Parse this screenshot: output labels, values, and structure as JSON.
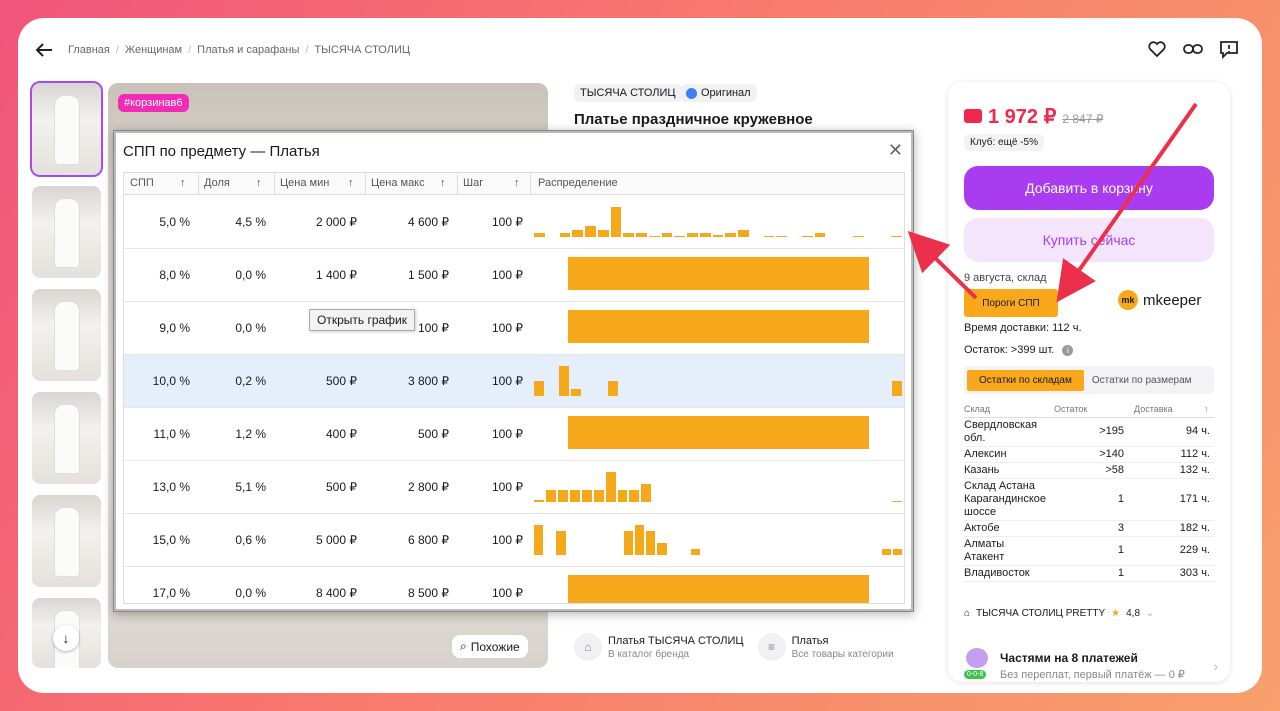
{
  "breadcrumb": [
    "Главная",
    "Женщинам",
    "Платья и сарафаны",
    "ТЫСЯЧА СТОЛИЦ"
  ],
  "breadcrumb_sep": "/",
  "image": {
    "tag": "#корзинав6",
    "similar_label": "Похожие"
  },
  "product": {
    "brand": "ТЫСЯЧА СТОЛИЦ",
    "original_label": "Оригинал",
    "title": "Платье праздничное кружевное"
  },
  "bottom_links": [
    {
      "title": "Платья ТЫСЯЧА СТОЛИЦ",
      "subtitle": "В каталог бренда"
    },
    {
      "title": "Платья",
      "subtitle": "Все товары категории"
    }
  ],
  "buy_panel": {
    "price": "1 972 ₽",
    "old_price": "2 847 ₽",
    "club": "Клуб: ещё -5%",
    "add_to_cart": "Добавить в корзину",
    "buy_now": "Купить сейчас",
    "delivery_date": "9 августа, склад",
    "spp_button": "Пороги СПП",
    "mkeeper_logo": "mk",
    "mkeeper": "mkeeper",
    "delivery_time": "Время доставки: 112 ч.",
    "stock": "Остаток: >399 шт.",
    "tab_warehouses": "Остатки по складам",
    "tab_sizes": "Остатки по размерам",
    "warehouse_headers": [
      "Склад",
      "Остаток",
      "Доставка"
    ],
    "warehouses": [
      {
        "name": "Свердловская обл.",
        "qty": ">195",
        "time": "94 ч."
      },
      {
        "name": "Алексин",
        "qty": ">140",
        "time": "112 ч."
      },
      {
        "name": "Казань",
        "qty": ">58",
        "time": "132 ч."
      },
      {
        "name": "Склад Астана Карагандинское шоссе",
        "qty": "1",
        "time": "171 ч."
      },
      {
        "name": "Актобе",
        "qty": "3",
        "time": "182 ч."
      },
      {
        "name": "Алматы Атакент",
        "qty": "1",
        "time": "229 ч."
      },
      {
        "name": "Владивосток",
        "qty": "1",
        "time": "303 ч."
      }
    ],
    "seller": "ТЫСЯЧА СТОЛИЦ PRETTY",
    "rating": "4,8",
    "installments_title": "Частями на 8 платежей",
    "installments_sub": "Без переплат, первый платёж — 0 ₽",
    "installments_badge": "0-0-8"
  },
  "modal": {
    "title": "СПП по предмету — Платья",
    "columns": [
      "СПП",
      "Доля",
      "Цена мин",
      "Цена макс",
      "Шаг",
      "Распределение"
    ],
    "tooltip": "Открыть график",
    "rows": [
      {
        "spp": "5,0 %",
        "share": "4,5 %",
        "min": "2 000 ₽",
        "max": "4 600 ₽",
        "step": "100 ₽",
        "bars": [
          1,
          0,
          1,
          2,
          3,
          2,
          8,
          1,
          1,
          0.3,
          1,
          0.3,
          1,
          1,
          0.5,
          1,
          2,
          0,
          0.3,
          0.3,
          0,
          0.3,
          1,
          0,
          0,
          0.3,
          0,
          0,
          0.3
        ]
      },
      {
        "spp": "8,0 %",
        "share": "0,0 %",
        "min": "1 400 ₽",
        "max": "1 500 ₽",
        "step": "100 ₽",
        "full": true
      },
      {
        "spp": "9,0 %",
        "share": "0,0 %",
        "min": "",
        "max": "100 ₽",
        "step": "100 ₽",
        "full": true
      },
      {
        "spp": "10,0 %",
        "share": "0,2 %",
        "min": "500 ₽",
        "max": "3 800 ₽",
        "step": "100 ₽",
        "highlight": true,
        "bars": [
          2,
          0,
          4,
          1,
          0,
          0,
          2,
          0,
          0,
          0,
          0,
          0,
          0,
          0,
          0,
          0,
          0,
          0,
          0,
          0,
          0,
          0,
          0,
          0,
          0,
          0,
          0,
          0,
          0,
          2
        ]
      },
      {
        "spp": "11,0 %",
        "share": "1,2 %",
        "min": "400 ₽",
        "max": "500 ₽",
        "step": "100 ₽",
        "full": true
      },
      {
        "spp": "13,0 %",
        "share": "5,1 %",
        "min": "500 ₽",
        "max": "2 800 ₽",
        "step": "100 ₽",
        "bars": [
          0.3,
          2,
          2,
          2,
          2,
          2,
          5,
          2,
          2,
          3,
          0,
          0,
          0,
          0,
          0,
          0,
          0,
          0,
          0,
          0,
          0,
          0,
          0,
          0,
          0,
          0,
          0,
          0,
          0,
          0,
          0.1
        ]
      },
      {
        "spp": "15,0 %",
        "share": "0,6 %",
        "min": "5 000 ₽",
        "max": "6 800 ₽",
        "step": "100 ₽",
        "bars": [
          5,
          0,
          4,
          0,
          0,
          0,
          0,
          0,
          4,
          5,
          4,
          2,
          0,
          0,
          1,
          0,
          0,
          0,
          0,
          0,
          0,
          0,
          0,
          0,
          0,
          0,
          0,
          0,
          0,
          0,
          0,
          1,
          1
        ]
      },
      {
        "spp": "17,0 %",
        "share": "0,0 %",
        "min": "8 400 ₽",
        "max": "8 500 ₽",
        "step": "100 ₽",
        "full": true
      }
    ]
  }
}
